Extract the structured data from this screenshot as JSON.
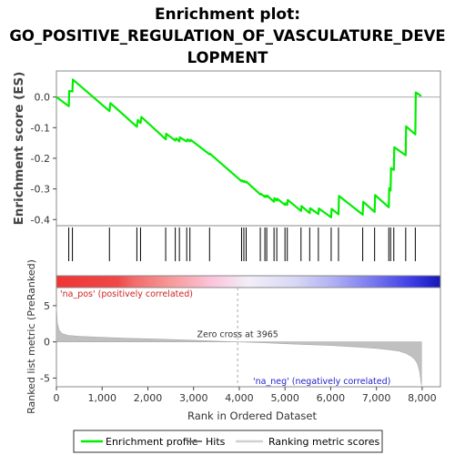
{
  "chart_data": {
    "type": "line",
    "title_lines": [
      "Enrichment plot:",
      "GO_POSITIVE_REGULATION_OF_VASCULATURE_DEVE",
      "LOPMENT"
    ],
    "xlabel": "Rank in Ordered Dataset",
    "xlim": [
      0,
      8400
    ],
    "x_ticks": [
      0,
      1000,
      2000,
      3000,
      4000,
      5000,
      6000,
      7000,
      8000
    ],
    "x_tick_labels": [
      "0",
      "1,000",
      "2,000",
      "3,000",
      "4,000",
      "5,000",
      "6,000",
      "7,000",
      "8,000"
    ],
    "es_panel": {
      "ylabel": "Enrichment score (ES)",
      "ylim": [
        -0.42,
        0.085
      ],
      "y_ticks": [
        0.0,
        -0.1,
        -0.2,
        -0.3,
        -0.4
      ],
      "y_tick_labels": [
        "0.0",
        "-0.1",
        "-0.2",
        "-0.3",
        "-0.4"
      ],
      "line_color": "#00ff00",
      "x": [
        0,
        270,
        280,
        350,
        360,
        1160,
        1180,
        1760,
        1780,
        1840,
        1860,
        2390,
        2400,
        2600,
        2620,
        2690,
        2700,
        2850,
        2870,
        2920,
        2940,
        3350,
        3360,
        4050,
        4060,
        4100,
        4110,
        4150,
        4160,
        4460,
        4470,
        4560,
        4570,
        4600,
        4610,
        4760,
        4770,
        4820,
        4830,
        5000,
        5010,
        5050,
        5060,
        5350,
        5360,
        5540,
        5550,
        5730,
        5740,
        6010,
        6020,
        6170,
        6180,
        6700,
        6710,
        6960,
        6970,
        7270,
        7280,
        7310,
        7320,
        7380,
        7390,
        7640,
        7650,
        7850,
        7860,
        7980
      ],
      "y": [
        0.0,
        -0.03,
        0.02,
        0.018,
        0.057,
        -0.046,
        -0.02,
        -0.097,
        -0.075,
        -0.085,
        -0.065,
        -0.138,
        -0.12,
        -0.142,
        -0.135,
        -0.145,
        -0.132,
        -0.145,
        -0.138,
        -0.145,
        -0.14,
        -0.187,
        -0.185,
        -0.275,
        -0.272,
        -0.277,
        -0.274,
        -0.279,
        -0.277,
        -0.318,
        -0.316,
        -0.326,
        -0.322,
        -0.326,
        -0.322,
        -0.342,
        -0.33,
        -0.338,
        -0.332,
        -0.352,
        -0.347,
        -0.352,
        -0.336,
        -0.372,
        -0.356,
        -0.379,
        -0.363,
        -0.382,
        -0.364,
        -0.393,
        -0.365,
        -0.383,
        -0.323,
        -0.384,
        -0.342,
        -0.375,
        -0.32,
        -0.36,
        -0.298,
        -0.305,
        -0.232,
        -0.238,
        -0.164,
        -0.19,
        -0.096,
        -0.122,
        0.015,
        0.003
      ]
    },
    "hits_panel": {
      "hits": [
        270,
        350,
        1160,
        1760,
        1840,
        2390,
        2600,
        2690,
        2850,
        2920,
        3350,
        4050,
        4100,
        4150,
        4460,
        4560,
        4600,
        4760,
        4820,
        5000,
        5050,
        5350,
        5540,
        5730,
        6010,
        6170,
        6700,
        6960,
        7270,
        7310,
        7380,
        7640,
        7850
      ]
    },
    "metric_panel": {
      "ylabel": "Ranked list metric (PreRanked)",
      "ylim": [
        -6.2,
        7.5
      ],
      "y_ticks": [
        5,
        0,
        -5
      ],
      "y_tick_labels": [
        "5",
        "0",
        "-5"
      ],
      "label_pos": "'na_pos' (positively correlated)",
      "label_neg": "'na_neg' (negatively correlated)",
      "zero_cross_label": "Zero cross at 3965",
      "zero_cross": 3965,
      "x": [
        0,
        20,
        60,
        120,
        250,
        500,
        1000,
        1500,
        2000,
        2500,
        3000,
        3500,
        3965,
        4500,
        5000,
        5500,
        6000,
        6500,
        7000,
        7300,
        7500,
        7650,
        7750,
        7820,
        7870,
        7900,
        7920,
        7945,
        7960,
        7975,
        7985
      ],
      "y": [
        5.0,
        2.6,
        1.6,
        1.15,
        0.9,
        0.78,
        0.62,
        0.5,
        0.42,
        0.32,
        0.22,
        0.1,
        0.0,
        -0.12,
        -0.25,
        -0.38,
        -0.5,
        -0.68,
        -0.9,
        -1.1,
        -1.3,
        -1.6,
        -1.95,
        -2.3,
        -2.7,
        -3.1,
        -3.5,
        -4.1,
        -4.8,
        -5.5,
        -6.0
      ]
    },
    "legend": {
      "items": [
        "Enrichment profile",
        "Hits",
        "Ranking metric scores"
      ]
    }
  }
}
